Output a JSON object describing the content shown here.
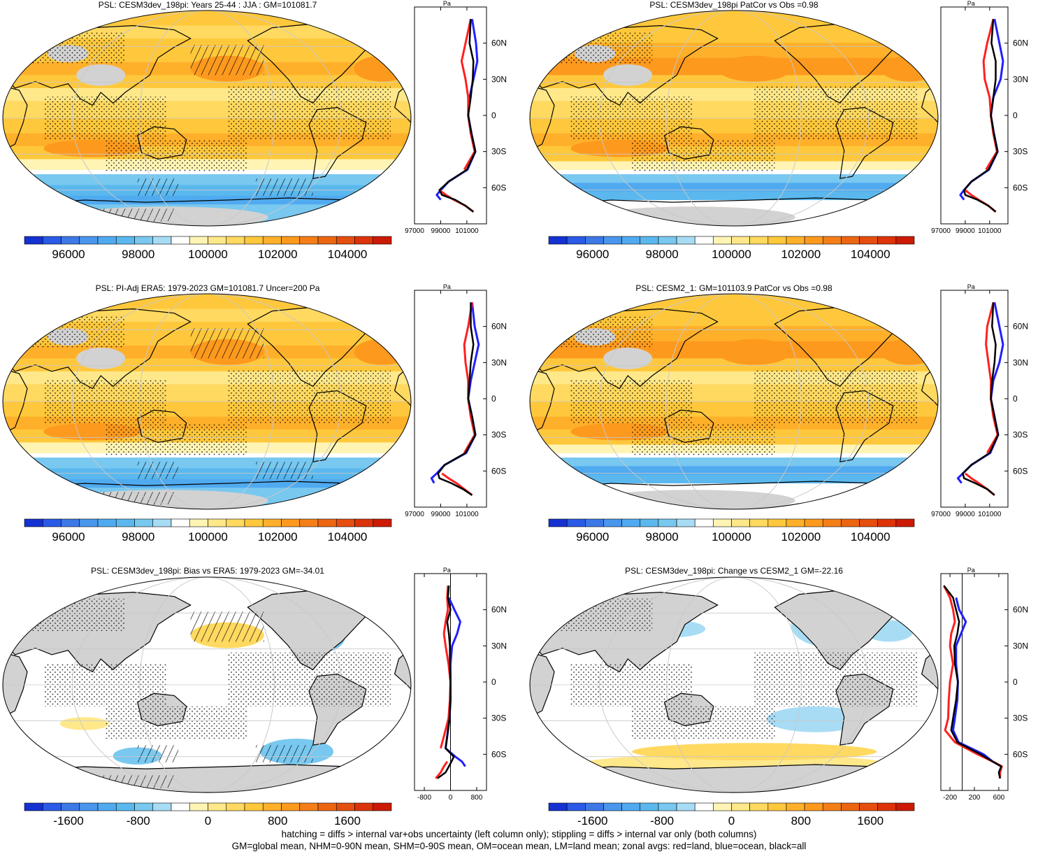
{
  "chart_data": [
    {
      "type": "map",
      "title": "PSL: CESM3dev_198pi: Years 25-44 : JJA : GM=101081.7",
      "colorbar": {
        "ticks": [
          "96000",
          "98000",
          "100000",
          "102000",
          "104000"
        ]
      },
      "zonal": {
        "unit": "Pa",
        "xticks": [
          "97000",
          "99000",
          "101000"
        ],
        "xlim": [
          97000,
          102500
        ],
        "lat_labels": [
          "60N",
          "30N",
          "0",
          "30S",
          "60S"
        ],
        "lat": [
          80,
          60,
          45,
          30,
          15,
          0,
          -15,
          -30,
          -45,
          -55,
          -62,
          -66,
          -70,
          -75,
          -80
        ],
        "all": [
          101300,
          101200,
          101500,
          101450,
          101300,
          101100,
          101350,
          101650,
          101000,
          99600,
          98900,
          99100,
          100100,
          100900,
          101500
        ],
        "land": [
          101300,
          100900,
          100600,
          100900,
          101100,
          101100,
          101300,
          101600,
          100800,
          null,
          98900,
          99400,
          100000,
          100900,
          101500
        ],
        "ocean": [
          101400,
          101700,
          101800,
          101500,
          101200,
          101100,
          101350,
          101650,
          101050,
          99600,
          99000,
          98700,
          99000,
          null,
          null
        ]
      },
      "legend_labels": [
        "PSL"
      ]
    },
    {
      "type": "map",
      "title": "PSL: CESM3dev_198pi PatCor vs Obs =0.98",
      "colorbar": {
        "ticks": [
          "96000",
          "98000",
          "100000",
          "102000",
          "104000"
        ]
      },
      "zonal": {
        "unit": "Pa",
        "xticks": [
          "97000",
          "99000",
          "101000"
        ],
        "xlim": [
          97000,
          102500
        ],
        "lat_labels": [
          "60N",
          "30N",
          "0",
          "30S",
          "60S"
        ],
        "lat": [
          80,
          60,
          45,
          30,
          15,
          0,
          -15,
          -30,
          -45,
          -55,
          -62,
          -66,
          -70,
          -75,
          -80
        ],
        "all": [
          101300,
          101150,
          101500,
          101500,
          101300,
          101100,
          101350,
          101650,
          100900,
          99500,
          98900,
          99000,
          100000,
          100900,
          101500
        ],
        "land": [
          101300,
          100800,
          100500,
          100600,
          101000,
          101100,
          101300,
          101600,
          100700,
          null,
          99000,
          99500,
          100100,
          100900,
          101500
        ],
        "ocean": [
          101400,
          101800,
          102100,
          101900,
          101300,
          101100,
          101350,
          101650,
          100950,
          99500,
          98900,
          98600,
          98900,
          null,
          null
        ]
      }
    },
    {
      "type": "map",
      "title": "PSL: PI-Adj ERA5: 1979-2023 GM=101081.7 Uncer=200 Pa",
      "colorbar": {
        "ticks": [
          "96000",
          "98000",
          "100000",
          "102000",
          "104000"
        ]
      },
      "zonal": {
        "unit": "Pa",
        "xticks": [
          "97000",
          "99000",
          "101000"
        ],
        "xlim": [
          97000,
          102500
        ],
        "lat_labels": [
          "60N",
          "30N",
          "0",
          "30S",
          "60S"
        ],
        "lat": [
          80,
          60,
          45,
          30,
          15,
          0,
          -15,
          -30,
          -45,
          -55,
          -62,
          -66,
          -70,
          -75,
          -80
        ],
        "all": [
          101300,
          101300,
          101500,
          101300,
          101200,
          101100,
          101400,
          101650,
          100900,
          99300,
          98800,
          98900,
          99800,
          100700,
          101400
        ],
        "land": [
          101400,
          101100,
          100800,
          100900,
          101100,
          101100,
          101300,
          101600,
          100800,
          null,
          99100,
          99600,
          100200,
          100800,
          101400
        ],
        "ocean": [
          101400,
          101600,
          101900,
          101600,
          101300,
          101100,
          101400,
          101650,
          100950,
          99300,
          98700,
          98300,
          98500,
          null,
          null
        ]
      }
    },
    {
      "type": "map",
      "title": "PSL: CESM2_1: GM=101103.9 PatCor vs Obs =0.98",
      "colorbar": {
        "ticks": [
          "96000",
          "98000",
          "100000",
          "102000",
          "104000"
        ]
      },
      "zonal": {
        "unit": "Pa",
        "xticks": [
          "97000",
          "99000",
          "101000"
        ],
        "xlim": [
          97000,
          102500
        ],
        "lat_labels": [
          "60N",
          "30N",
          "0",
          "30S",
          "60S"
        ],
        "lat": [
          80,
          60,
          45,
          30,
          15,
          0,
          -15,
          -30,
          -45,
          -55,
          -62,
          -66,
          -70,
          -75,
          -80
        ],
        "all": [
          101300,
          101200,
          101500,
          101400,
          101200,
          101100,
          101400,
          101700,
          101000,
          99500,
          98800,
          98900,
          99800,
          100800,
          101400
        ],
        "land": [
          101300,
          100800,
          100700,
          100900,
          101100,
          101100,
          101300,
          101650,
          100800,
          null,
          99000,
          99500,
          100100,
          100800,
          101400
        ],
        "ocean": [
          101400,
          101800,
          102100,
          101800,
          101300,
          101100,
          101400,
          101700,
          101050,
          99500,
          98800,
          98400,
          98700,
          null,
          null
        ]
      }
    },
    {
      "type": "map",
      "title": "PSL: CESM3dev_198pi: Bias vs ERA5: 1979-2023 GM=-34.01",
      "colorbar": {
        "ticks": [
          "-1600",
          "-800",
          "0",
          "800",
          "1600"
        ]
      },
      "zonal": {
        "unit": "Pa",
        "xticks": [
          "-800",
          "0",
          "800"
        ],
        "xlim": [
          -1100,
          1100
        ],
        "zero_line": true,
        "lat_labels": [
          "60N",
          "30N",
          "0",
          "30S",
          "60S"
        ],
        "lat": [
          80,
          70,
          60,
          50,
          40,
          30,
          15,
          0,
          -15,
          -30,
          -45,
          -55,
          -62,
          -66,
          -70,
          -75,
          -80
        ],
        "all": [
          -50,
          -80,
          0,
          -100,
          -50,
          -20,
          -20,
          0,
          0,
          -30,
          -100,
          -150,
          100,
          30,
          -50,
          -150,
          -400
        ],
        "land": [
          -80,
          -100,
          -80,
          -150,
          -200,
          -150,
          -60,
          0,
          -20,
          -60,
          -200,
          -300,
          null,
          -100,
          -200,
          -300,
          -450
        ],
        "ocean": [
          null,
          -50,
          120,
          300,
          200,
          50,
          0,
          0,
          0,
          -30,
          -100,
          -150,
          150,
          350,
          450,
          null,
          null
        ]
      }
    },
    {
      "type": "map",
      "title": "PSL: CESM3dev_198pi: Change vs CESM2_1 GM=-22.16",
      "colorbar": {
        "ticks": [
          "-1600",
          "-800",
          "0",
          "800",
          "1600"
        ]
      },
      "zonal": {
        "unit": "Pa",
        "xticks": [
          "-200",
          "200",
          "600"
        ],
        "xlim": [
          -350,
          750
        ],
        "zero_line": true,
        "lat_labels": [
          "60N",
          "30N",
          "0",
          "30S",
          "60S"
        ],
        "lat": [
          80,
          70,
          60,
          50,
          40,
          30,
          15,
          0,
          -15,
          -30,
          -40,
          -50,
          -60,
          -66,
          -70,
          -75,
          -80
        ],
        "all": [
          -300,
          -150,
          -100,
          -50,
          -80,
          -130,
          -120,
          -70,
          -100,
          -150,
          -180,
          -80,
          300,
          500,
          640,
          600,
          620
        ],
        "land": [
          -300,
          -200,
          -150,
          -120,
          -180,
          -200,
          -150,
          -200,
          -220,
          -230,
          -280,
          -120,
          250,
          500,
          650,
          620,
          620
        ],
        "ocean": [
          null,
          -100,
          -50,
          60,
          -20,
          -100,
          -100,
          -70,
          -80,
          -120,
          -150,
          -60,
          350,
          500,
          640,
          null,
          null
        ]
      }
    }
  ],
  "colors": {
    "seq": [
      "#1432d2",
      "#2a5ae6",
      "#3c78e6",
      "#4a96ec",
      "#50aaf0",
      "#5ab8ee",
      "#78c8f0",
      "#a8dcf5",
      "#ffffff",
      "#fff4b4",
      "#ffe88a",
      "#ffd960",
      "#ffc83c",
      "#ffb02a",
      "#fd9a1e",
      "#f47f18",
      "#ec6612",
      "#e54e0e",
      "#dd330a",
      "#cc1a05"
    ],
    "land": "#d2d2d2",
    "land_line": "#ff2020",
    "ocean_line": "#2020ff",
    "all_line": "#000000"
  },
  "footer": {
    "line1": "hatching = diffs > internal var+obs uncertainty (left column only); stippling = diffs > internal var only (both columns)",
    "line2": "GM=global mean, NHM=0-90N mean, SHM=0-90S mean, OM=ocean mean, LM=land mean; zonal avgs: red=land, blue=ocean, black=all"
  }
}
